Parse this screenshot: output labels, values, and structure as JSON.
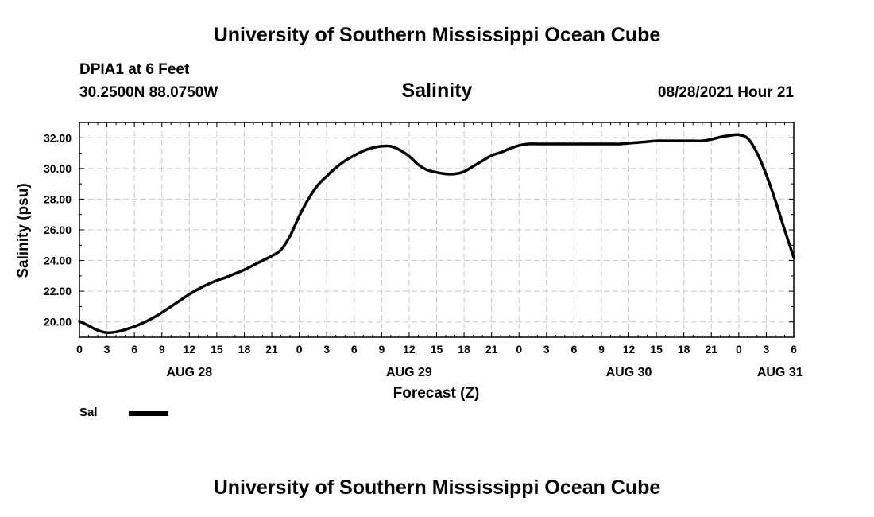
{
  "header": {
    "title": "University of Southern Mississippi Ocean Cube",
    "station": "DPIA1 at 6 Feet",
    "coords": "30.2500N  88.0750W",
    "variable": "Salinity",
    "timestamp": "08/28/2021 Hour 21"
  },
  "footer": {
    "title": "University of Southern Mississippi Ocean Cube"
  },
  "legend": {
    "label": "Sal"
  },
  "chart_data": {
    "type": "line",
    "title": "Salinity",
    "xlabel": "Forecast (Z)",
    "ylabel": "Salinity (psu)",
    "x_unit": "forecast hour from AUG 28 00Z",
    "xlim": [
      0,
      78
    ],
    "ylim": [
      19,
      33
    ],
    "grid": true,
    "legend_position": "bottom-left",
    "line_color": "#000000",
    "x_ticks": [
      0,
      3,
      6,
      9,
      12,
      15,
      18,
      21,
      24,
      27,
      30,
      33,
      36,
      39,
      42,
      45,
      48,
      51,
      54,
      57,
      60,
      63,
      66,
      69,
      72,
      75,
      78
    ],
    "x_tick_labels": [
      "0",
      "3",
      "6",
      "9",
      "12",
      "15",
      "18",
      "21",
      "0",
      "3",
      "6",
      "9",
      "12",
      "15",
      "18",
      "21",
      "0",
      "3",
      "6",
      "9",
      "12",
      "15",
      "18",
      "21",
      "0",
      "3",
      "6"
    ],
    "day_labels": [
      {
        "x": 12,
        "label": "AUG 28"
      },
      {
        "x": 36,
        "label": "AUG 29"
      },
      {
        "x": 60,
        "label": "AUG 30"
      },
      {
        "x": 76.5,
        "label": "AUG 31"
      }
    ],
    "y_ticks": [
      20,
      22,
      24,
      26,
      28,
      30,
      32
    ],
    "y_tick_labels": [
      "20.00",
      "22.00",
      "24.00",
      "26.00",
      "28.00",
      "30.00",
      "32.00"
    ],
    "series": [
      {
        "name": "Sal",
        "x": [
          0,
          1,
          2,
          3,
          4,
          5,
          6,
          7,
          8,
          9,
          10,
          11,
          12,
          13,
          14,
          15,
          16,
          17,
          18,
          19,
          20,
          21,
          22,
          23,
          24,
          25,
          26,
          27,
          28,
          29,
          30,
          31,
          32,
          33,
          34,
          35,
          36,
          37,
          38,
          39,
          40,
          41,
          42,
          43,
          44,
          45,
          46,
          47,
          48,
          49,
          50,
          51,
          52,
          53,
          54,
          55,
          56,
          57,
          58,
          59,
          60,
          61,
          62,
          63,
          64,
          65,
          66,
          67,
          68,
          69,
          70,
          71,
          72,
          73,
          74,
          75,
          76,
          77,
          78
        ],
        "values": [
          20.05,
          19.75,
          19.45,
          19.3,
          19.35,
          19.5,
          19.7,
          19.95,
          20.25,
          20.6,
          21.0,
          21.4,
          21.8,
          22.15,
          22.45,
          22.7,
          22.9,
          23.15,
          23.4,
          23.7,
          24.0,
          24.3,
          24.7,
          25.6,
          26.9,
          28.0,
          28.9,
          29.5,
          30.05,
          30.5,
          30.85,
          31.15,
          31.35,
          31.45,
          31.45,
          31.2,
          30.8,
          30.25,
          29.9,
          29.75,
          29.65,
          29.65,
          29.8,
          30.15,
          30.5,
          30.85,
          31.05,
          31.3,
          31.5,
          31.6,
          31.6,
          31.6,
          31.6,
          31.6,
          31.6,
          31.6,
          31.6,
          31.6,
          31.6,
          31.6,
          31.65,
          31.7,
          31.75,
          31.8,
          31.8,
          31.8,
          31.8,
          31.8,
          31.8,
          31.9,
          32.05,
          32.15,
          32.2,
          31.95,
          31.0,
          29.6,
          27.9,
          26.0,
          24.2
        ]
      }
    ]
  }
}
